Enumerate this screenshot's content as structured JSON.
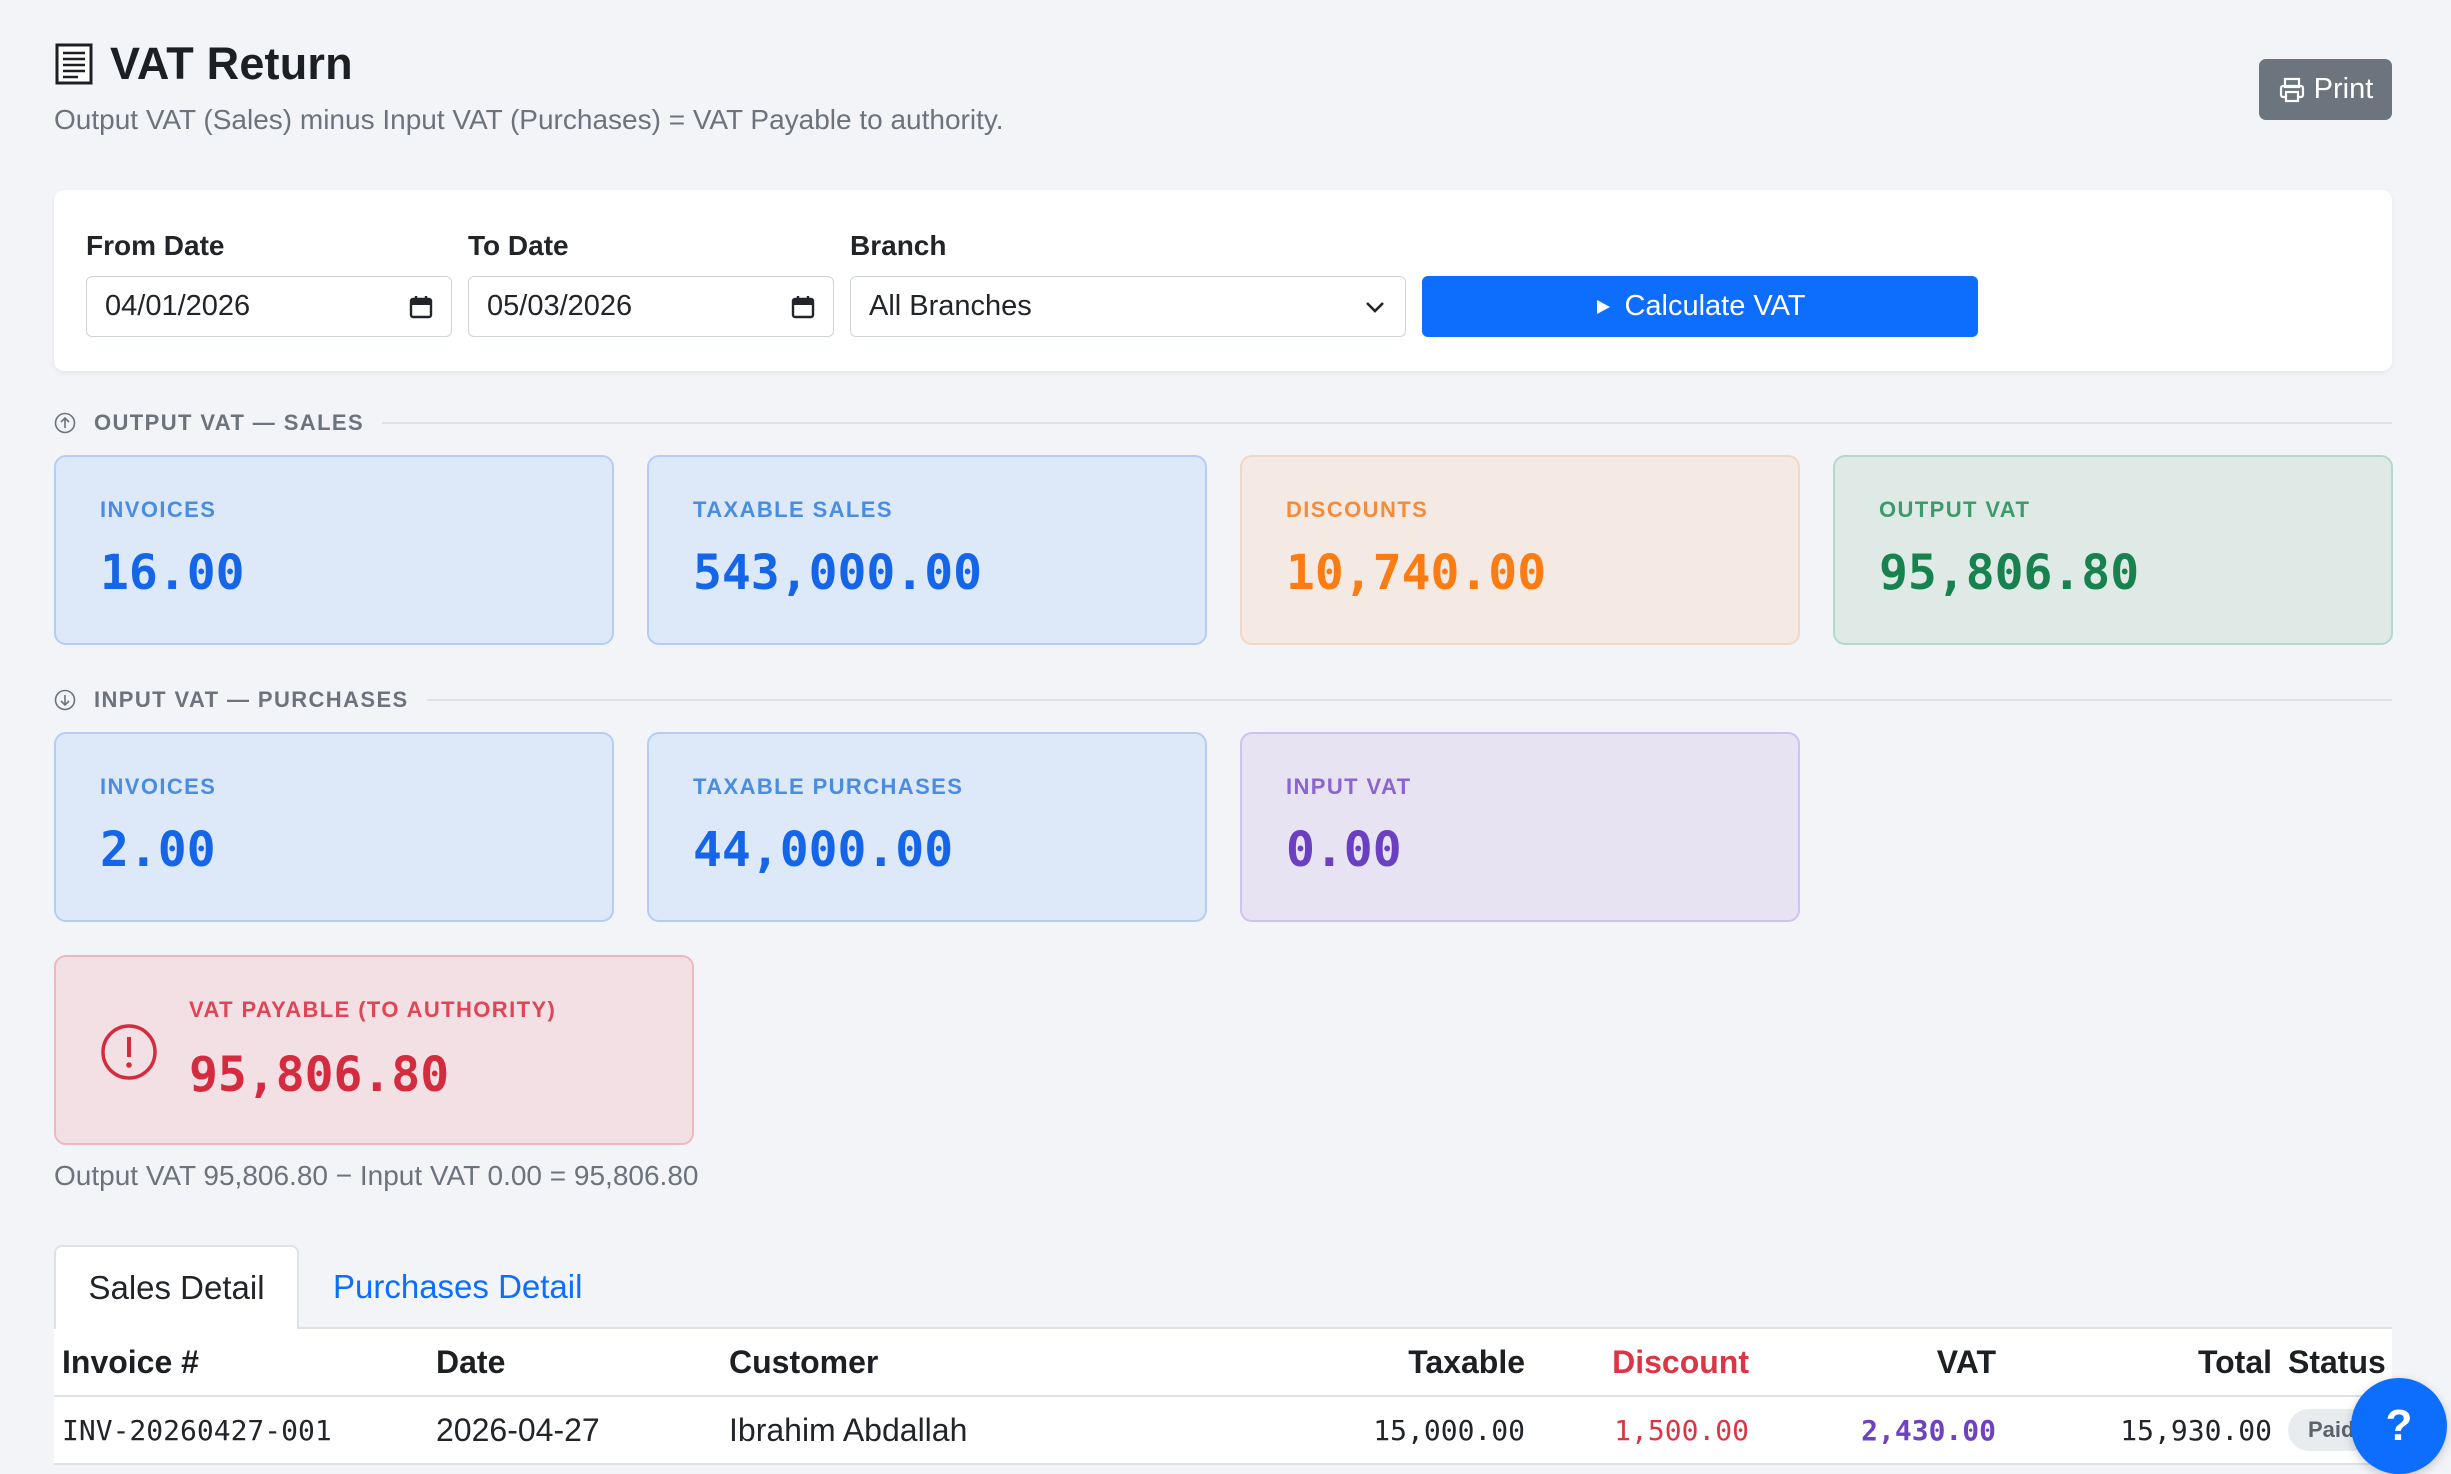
{
  "header": {
    "title": "VAT Return",
    "subtitle": "Output VAT (Sales) minus Input VAT (Purchases) = VAT Payable to authority.",
    "print_label": "Print"
  },
  "filters": {
    "from_label": "From Date",
    "from_value": "04/01/2026",
    "to_label": "To Date",
    "to_value": "05/03/2026",
    "branch_label": "Branch",
    "branch_value": "All Branches",
    "calc_label": "Calculate VAT"
  },
  "output_section": {
    "heading": "OUTPUT VAT — SALES",
    "cards": [
      {
        "label": "INVOICES",
        "value": "16.00"
      },
      {
        "label": "TAXABLE SALES",
        "value": "543,000.00"
      },
      {
        "label": "DISCOUNTS",
        "value": "10,740.00"
      },
      {
        "label": "OUTPUT VAT",
        "value": "95,806.80"
      }
    ]
  },
  "input_section": {
    "heading": "INPUT VAT — PURCHASES",
    "cards": [
      {
        "label": "INVOICES",
        "value": "2.00"
      },
      {
        "label": "TAXABLE PURCHASES",
        "value": "44,000.00"
      },
      {
        "label": "INPUT VAT",
        "value": "0.00"
      }
    ]
  },
  "payable": {
    "label": "VAT PAYABLE (TO AUTHORITY)",
    "value": "95,806.80",
    "formula": "Output VAT 95,806.80 − Input VAT 0.00 = 95,806.80"
  },
  "tabs": [
    "Sales Detail",
    "Purchases Detail"
  ],
  "table": {
    "headers": [
      "Invoice #",
      "Date",
      "Customer",
      "Taxable",
      "Discount",
      "VAT",
      "Total",
      "Status"
    ],
    "rows": [
      {
        "invoice": "INV-20260427-001",
        "date": "2026-04-27",
        "customer": "Ibrahim Abdallah",
        "taxable": "15,000.00",
        "discount": "1,500.00",
        "vat": "2,430.00",
        "total": "15,930.00",
        "status": "Paid"
      }
    ]
  },
  "help_label": "?",
  "colors": {
    "primary": "#0d6efd",
    "secondary": "#6c757d",
    "danger": "#dc3545",
    "purple": "#6f42c1"
  }
}
